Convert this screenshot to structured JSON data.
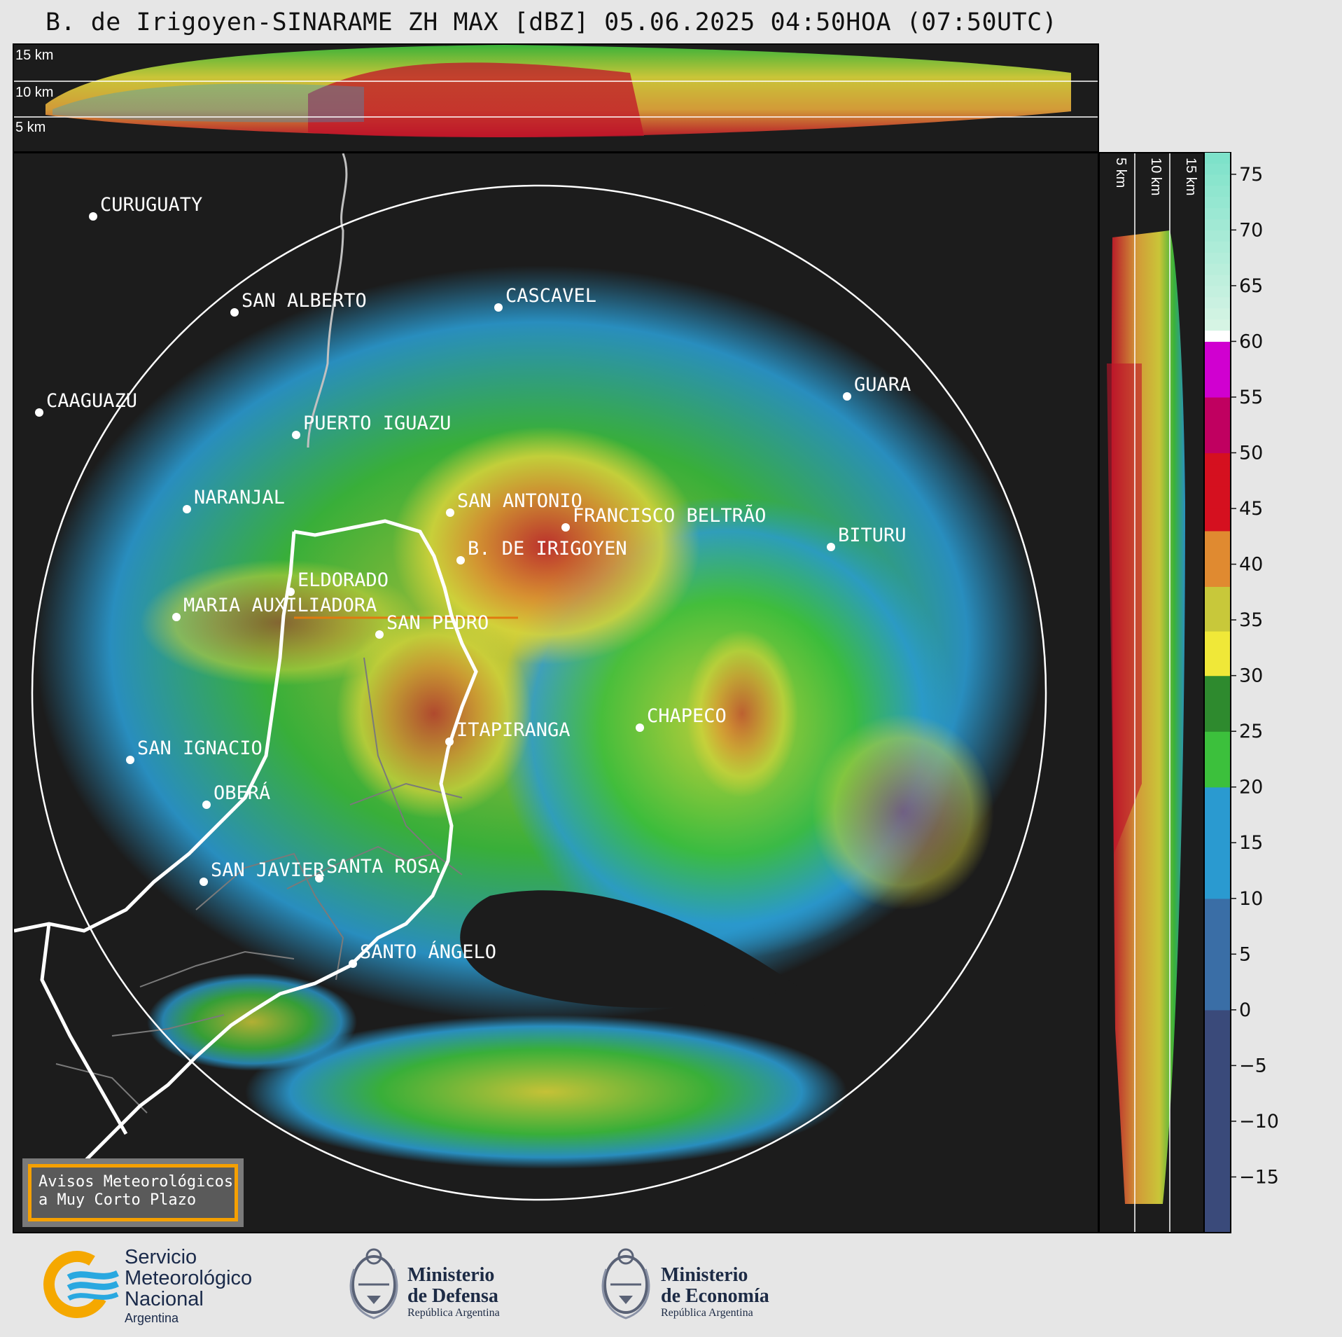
{
  "title": "B. de Irigoyen-SINARAME ZH MAX [dBZ] 05.06.2025 04:50HOA (07:50UTC)",
  "top_panel": {
    "height_labels": [
      "15 km",
      "10 km",
      "5 km"
    ]
  },
  "right_panel": {
    "height_labels": [
      "5 km",
      "10 km",
      "15 km"
    ]
  },
  "colorbar": {
    "unit": "dBZ",
    "ticks": [
      "75",
      "70",
      "65",
      "60",
      "55",
      "50",
      "45",
      "40",
      "35",
      "30",
      "25",
      "20",
      "15",
      "10",
      "5",
      "0",
      "−5",
      "−10",
      "−15"
    ],
    "range": [
      -20,
      77
    ]
  },
  "cities": [
    {
      "name": "CURUGUATY"
    },
    {
      "name": "SAN ALBERTO"
    },
    {
      "name": "CASCAVEL"
    },
    {
      "name": "CAAGUAZU"
    },
    {
      "name": "GUARA"
    },
    {
      "name": "PUERTO IGUAZU"
    },
    {
      "name": "NARANJAL"
    },
    {
      "name": "SAN ANTONIO"
    },
    {
      "name": "FRANCISCO BELTRÃO"
    },
    {
      "name": "BITURU"
    },
    {
      "name": "B. DE IRIGOYEN"
    },
    {
      "name": "ELDORADO"
    },
    {
      "name": "MARIA AUXILIADORA"
    },
    {
      "name": "SAN PEDRO"
    },
    {
      "name": "CHAPECO"
    },
    {
      "name": "ITAPIRANGA"
    },
    {
      "name": "SAN IGNACIO"
    },
    {
      "name": "OBERÁ"
    },
    {
      "name": "SAN JAVIER"
    },
    {
      "name": "SANTA ROSA"
    },
    {
      "name": "SANTO ÁNGELO"
    }
  ],
  "aviso": {
    "line1": "Avisos Meteorológicos",
    "line2": "a Muy Corto Plazo"
  },
  "footer": {
    "smn": {
      "l1": "Servicio",
      "l2": "Meteorológico",
      "l3": "Nacional",
      "l4": "Argentina"
    },
    "defensa": {
      "a": "Ministerio",
      "b": "de Defensa",
      "c": "República Argentina"
    },
    "economia": {
      "a": "Ministerio",
      "b": "de Economía",
      "c": "República Argentina"
    }
  },
  "colors": {
    "background": "#1c1c1c",
    "range_ring": "#ffffff",
    "aviso_border": "#f5a000"
  }
}
